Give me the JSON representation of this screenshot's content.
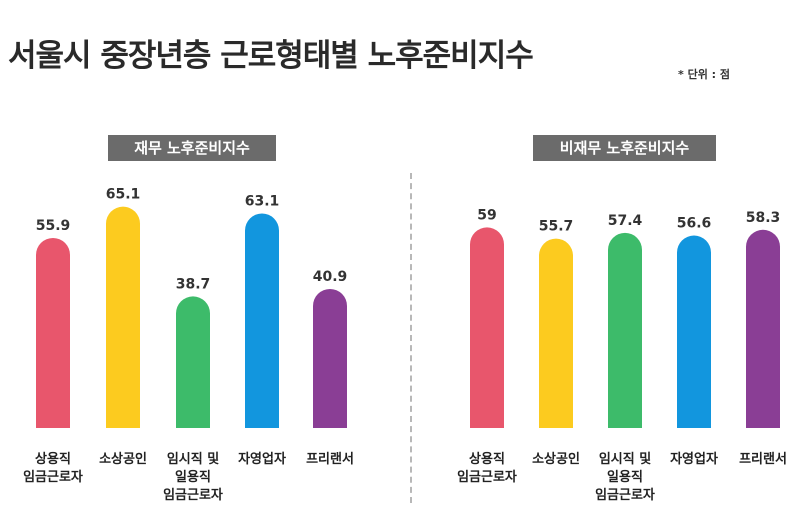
{
  "title": "서울시 중장년층 근로형태별 노후준비지수",
  "unit_note": "* 단위 : 점",
  "chart_data": [
    {
      "type": "bar",
      "title": "재무 노후준비지수",
      "categories": [
        [
          "상용직",
          "임금근로자"
        ],
        [
          "소상공인"
        ],
        [
          "임시직 및",
          "일용직",
          "임금근로자"
        ],
        [
          "자영업자"
        ],
        [
          "프리랜서"
        ]
      ],
      "values": [
        55.9,
        65.1,
        38.7,
        63.1,
        40.9
      ],
      "ylim": [
        0,
        70
      ],
      "grid": false,
      "colors": [
        "#e8566c",
        "#fccb1f",
        "#3dbb6a",
        "#1296de",
        "#8a3e95"
      ]
    },
    {
      "type": "bar",
      "title": "비재무 노후준비지수",
      "categories": [
        [
          "상용직",
          "임금근로자"
        ],
        [
          "소상공인"
        ],
        [
          "임시직 및",
          "일용직",
          "임금근로자"
        ],
        [
          "자영업자"
        ],
        [
          "프리랜서"
        ]
      ],
      "values": [
        59,
        55.7,
        57.4,
        56.6,
        58.3
      ],
      "ylim": [
        0,
        70
      ],
      "grid": false,
      "colors": [
        "#e8566c",
        "#fccb1f",
        "#3dbb6a",
        "#1296de",
        "#8a3e95"
      ]
    }
  ]
}
